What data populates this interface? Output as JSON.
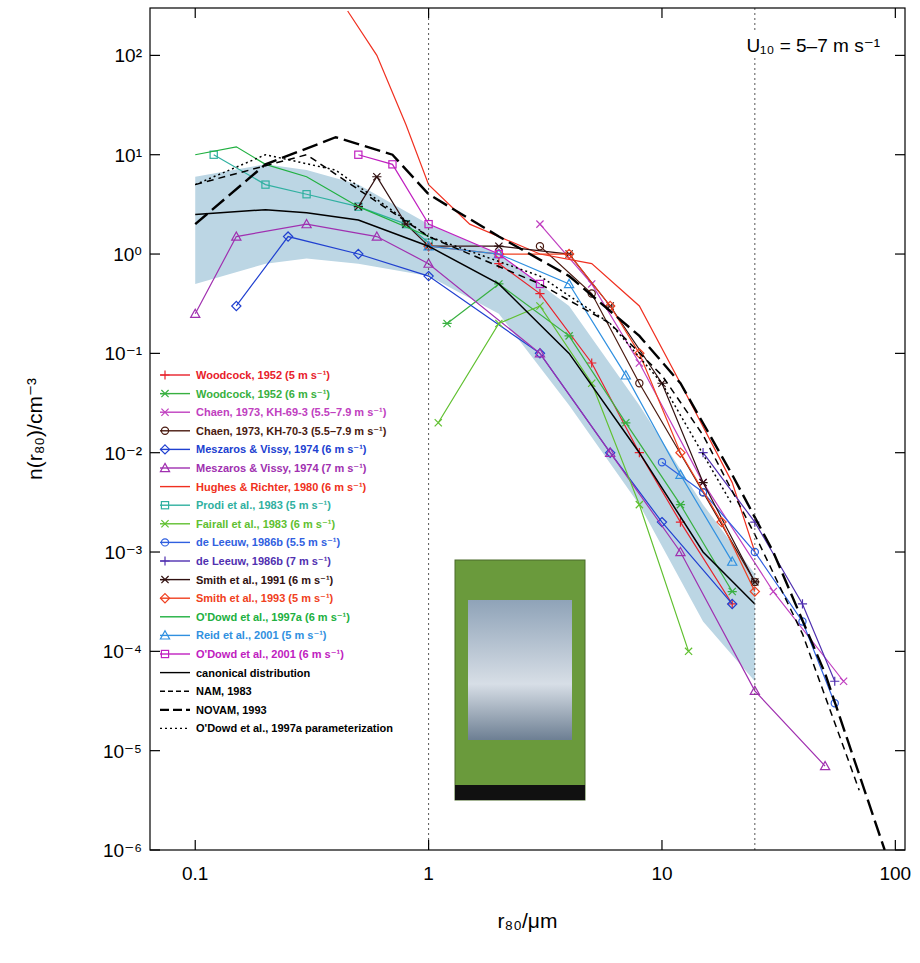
{
  "chart_data": {
    "type": "line",
    "log": true,
    "grid": false,
    "legend": "left",
    "annotation": "U₁₀ = 5–7 m s⁻¹",
    "x_label": "r₈₀/μm",
    "y_label": "n(r₈₀)/cm⁻³",
    "xlim": [
      0.064,
      110
    ],
    "ylim": [
      1e-06,
      300
    ],
    "xticks": [
      0.1,
      1,
      10,
      100
    ],
    "yticks": [
      {
        "value": 1e-06,
        "label": "10⁻⁶"
      },
      {
        "value": 1e-05,
        "label": "10⁻⁵"
      },
      {
        "value": 0.0001,
        "label": "10⁻⁴"
      },
      {
        "value": 0.001,
        "label": "10⁻³"
      },
      {
        "value": 0.01,
        "label": "10⁻²"
      },
      {
        "value": 0.1,
        "label": "10⁻¹"
      },
      {
        "value": 1,
        "label": "10⁰"
      },
      {
        "value": 10,
        "label": "10¹"
      },
      {
        "value": 100,
        "label": "10²"
      }
    ],
    "vlines": [
      1,
      25
    ],
    "series": [
      {
        "type": "band",
        "color": "#bcd6e4",
        "x": [
          0.1,
          0.2,
          0.3,
          0.5,
          1,
          2,
          4,
          8,
          15,
          25
        ],
        "values": [
          6,
          8,
          7,
          5,
          2,
          1,
          0.3,
          0.03,
          0.003,
          0.0006
        ],
        "lower": [
          0.5,
          0.8,
          0.9,
          0.8,
          0.6,
          0.25,
          0.03,
          0.003,
          0.0002,
          5e-05
        ]
      },
      {
        "name": "Woodcock, 1952 (5 m s⁻¹)",
        "color": "#e8202a",
        "marker": "plus",
        "line_style": "solid",
        "x": [
          2,
          3,
          5,
          8,
          12,
          20
        ],
        "values": [
          0.8,
          0.4,
          0.08,
          0.01,
          0.002,
          0.0003
        ]
      },
      {
        "name": "Woodcock, 1952 (6 m s⁻¹)",
        "color": "#38b040",
        "marker": "star",
        "line_style": "solid",
        "x": [
          1.2,
          2,
          4,
          7,
          12,
          20
        ],
        "values": [
          0.2,
          0.5,
          0.15,
          0.02,
          0.003,
          0.0004
        ]
      },
      {
        "name": "Chaen, 1973, KH-69-3 (5.5–7.9 m s⁻¹)",
        "color": "#c040c0",
        "marker": "x",
        "line_style": "solid",
        "x": [
          3,
          5,
          8,
          15,
          30,
          60
        ],
        "values": [
          2,
          0.5,
          0.08,
          0.005,
          0.0004,
          5e-05
        ]
      },
      {
        "name": "Chaen, 1973, KH-70-3 (5.5–7.9 m s⁻¹)",
        "color": "#4a1a10",
        "marker": "circle",
        "line_style": "solid",
        "x": [
          3,
          5,
          8,
          15,
          25
        ],
        "values": [
          1.2,
          0.4,
          0.05,
          0.004,
          0.0005
        ]
      },
      {
        "name": "Meszaros & Vissy, 1974 (6 m s⁻¹)",
        "color": "#2040d0",
        "marker": "diamond",
        "line_style": "solid",
        "x": [
          0.15,
          0.25,
          0.5,
          1,
          3,
          6,
          10,
          20
        ],
        "values": [
          0.3,
          1.5,
          1,
          0.6,
          0.1,
          0.01,
          0.002,
          0.0003
        ]
      },
      {
        "name": "Meszaros & Vissy, 1974 (7 m s⁻¹)",
        "color": "#a030b0",
        "marker": "triangle",
        "line_style": "solid",
        "x": [
          0.1,
          0.15,
          0.3,
          0.6,
          1,
          3,
          6,
          12,
          25,
          50
        ],
        "values": [
          0.25,
          1.5,
          2,
          1.5,
          0.8,
          0.1,
          0.01,
          0.001,
          4e-05,
          7e-06
        ]
      },
      {
        "name": "Hughes & Richter, 1980 (6 m s⁻¹)",
        "color": "#f03020",
        "marker": "none",
        "line_style": "solid",
        "x": [
          0.45,
          0.6,
          0.8,
          1,
          1.5,
          3,
          5,
          8,
          12,
          20,
          25
        ],
        "values": [
          280,
          100,
          20,
          5,
          2,
          1,
          0.8,
          0.3,
          0.05,
          0.005,
          0.001
        ]
      },
      {
        "name": "Prodi et al., 1983 (5 m s⁻¹)",
        "color": "#30b0a0",
        "marker": "square",
        "line_style": "solid",
        "x": [
          0.12,
          0.2,
          0.3,
          0.5,
          0.8,
          1
        ],
        "values": [
          10,
          5,
          4,
          3,
          2,
          1.3
        ]
      },
      {
        "name": "Fairall et al., 1983 (6 m s⁻¹)",
        "color": "#60c030",
        "marker": "x",
        "line_style": "solid",
        "x": [
          1.1,
          2,
          3,
          5,
          8,
          13
        ],
        "values": [
          0.02,
          0.2,
          0.3,
          0.05,
          0.003,
          0.0001
        ]
      },
      {
        "name": "de Leeuw, 1986b (5.5 m s⁻¹)",
        "color": "#3060e0",
        "marker": "circle",
        "line_style": "solid",
        "x": [
          10,
          15,
          25,
          40,
          55
        ],
        "values": [
          0.008,
          0.004,
          0.001,
          0.0002,
          3e-05
        ]
      },
      {
        "name": "de Leeuw, 1986b (7 m s⁻¹)",
        "color": "#5030b0",
        "marker": "plus",
        "line_style": "solid",
        "x": [
          15,
          25,
          40,
          55
        ],
        "values": [
          0.01,
          0.002,
          0.0003,
          5e-05
        ]
      },
      {
        "name": "Smith et al., 1991 (6 m s⁻¹)",
        "color": "#301010",
        "marker": "star",
        "line_style": "solid",
        "x": [
          0.5,
          0.6,
          0.8,
          1,
          2,
          4,
          6,
          10,
          15,
          25
        ],
        "values": [
          3,
          6,
          2,
          1.2,
          1.2,
          1,
          0.3,
          0.05,
          0.005,
          0.0005
        ]
      },
      {
        "name": "Smith et al., 1993 (5 m s⁻¹)",
        "color": "#f04020",
        "marker": "diamond",
        "line_style": "solid",
        "x": [
          1,
          2,
          4,
          6,
          8,
          12,
          18,
          25
        ],
        "values": [
          1.2,
          1,
          1,
          0.3,
          0.1,
          0.01,
          0.002,
          0.0004
        ]
      },
      {
        "name": "O'Dowd et al., 1997a (6 m s⁻¹)",
        "color": "#20b040",
        "marker": "none",
        "line_style": "solid",
        "x": [
          0.1,
          0.15,
          0.2,
          0.3,
          0.5,
          1
        ],
        "values": [
          10,
          12,
          8,
          6,
          3,
          1.5
        ]
      },
      {
        "name": "Reid et al., 2001 (5 m s⁻¹)",
        "color": "#3090e0",
        "marker": "triangle",
        "line_style": "solid",
        "x": [
          1,
          2,
          4,
          7,
          12,
          20
        ],
        "values": [
          1.2,
          1,
          0.5,
          0.06,
          0.006,
          0.0008
        ]
      },
      {
        "name": "O'Dowd et al., 2001 (6 m s⁻¹)",
        "color": "#c020c0",
        "marker": "square",
        "line_style": "solid",
        "x": [
          0.5,
          0.7,
          1,
          2,
          3
        ],
        "values": [
          10,
          8,
          2,
          1,
          0.5
        ]
      },
      {
        "name": "canonical distribution",
        "color": "#000000",
        "marker": "none",
        "line_style": "solid",
        "x": [
          0.1,
          0.2,
          0.3,
          0.5,
          1,
          2,
          4,
          8,
          15,
          25
        ],
        "values": [
          2.5,
          2.8,
          2.6,
          2.2,
          1.2,
          0.5,
          0.1,
          0.01,
          0.001,
          0.0003
        ]
      },
      {
        "name": "NAM, 1983",
        "color": "#000000",
        "marker": "none",
        "line_style": "dashed",
        "x": [
          0.1,
          0.3,
          1,
          3,
          6,
          10,
          15,
          25,
          40,
          70
        ],
        "values": [
          5,
          10,
          1.5,
          0.5,
          0.2,
          0.06,
          0.015,
          0.0015,
          0.00015,
          4e-06
        ]
      },
      {
        "name": "NOVAM, 1993",
        "color": "#000000",
        "marker": "none",
        "line_style": "longdash",
        "x": [
          0.1,
          0.2,
          0.4,
          0.7,
          1,
          2,
          4,
          8,
          12,
          20,
          30,
          50,
          90
        ],
        "values": [
          2,
          8,
          15,
          10,
          4,
          1.5,
          0.6,
          0.15,
          0.05,
          0.006,
          0.001,
          6e-05,
          1e-06
        ]
      },
      {
        "name": "O'Dowd et al., 1997a parameterization",
        "color": "#000000",
        "marker": "none",
        "line_style": "dotted",
        "x": [
          0.1,
          0.2,
          0.4,
          1,
          3,
          6,
          10,
          20
        ],
        "values": [
          5,
          10,
          7,
          1.5,
          0.6,
          0.2,
          0.05,
          0.003
        ]
      }
    ]
  }
}
